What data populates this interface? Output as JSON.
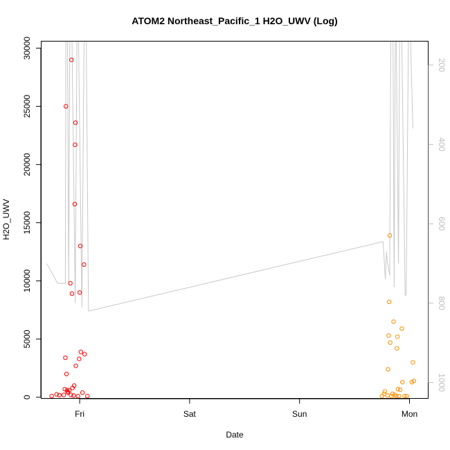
{
  "chart_data": {
    "type": "scatter",
    "title": "ATOM2 Northeast_Pacific_1 H2O_UWV (Log)",
    "xlabel": "Date",
    "ylabel": "H2O_UWV",
    "x_ticks": [
      {
        "label": "Fri",
        "day": 1.0
      },
      {
        "label": "Sat",
        "day": 2.0
      },
      {
        "label": "Sun",
        "day": 3.0
      },
      {
        "label": "Mon",
        "day": 4.0
      }
    ],
    "xlim_days": [
      0.65,
      4.17
    ],
    "ylim": [
      -100,
      30600
    ],
    "y_ticks": [
      0,
      5000,
      10000,
      15000,
      20000,
      25000,
      30000
    ],
    "right_axis": {
      "ticks": [
        200,
        400,
        600,
        800,
        1000
      ],
      "ylim": [
        1040,
        140
      ],
      "color": "#bdbdbd"
    },
    "colors": {
      "series1": "#ff0000",
      "series2": "#ff8c00",
      "profile_line": "#c8c8c8"
    },
    "series": [
      {
        "color": "#ff0000",
        "points": [
          {
            "day": 0.745,
            "value": 100
          },
          {
            "day": 0.79,
            "value": 250
          },
          {
            "day": 0.815,
            "value": 180
          },
          {
            "day": 0.855,
            "value": 200
          },
          {
            "day": 0.865,
            "value": 700
          },
          {
            "day": 0.87,
            "value": 3400
          },
          {
            "day": 0.875,
            "value": 25000
          },
          {
            "day": 0.88,
            "value": 2000
          },
          {
            "day": 0.885,
            "value": 600
          },
          {
            "day": 0.89,
            "value": 450
          },
          {
            "day": 0.895,
            "value": 400
          },
          {
            "day": 0.905,
            "value": 600
          },
          {
            "day": 0.915,
            "value": 9800
          },
          {
            "day": 0.92,
            "value": 200
          },
          {
            "day": 0.925,
            "value": 29000
          },
          {
            "day": 0.93,
            "value": 8900
          },
          {
            "day": 0.935,
            "value": 800
          },
          {
            "day": 0.945,
            "value": 150
          },
          {
            "day": 0.95,
            "value": 1000
          },
          {
            "day": 0.955,
            "value": 16600
          },
          {
            "day": 0.958,
            "value": 21700
          },
          {
            "day": 0.962,
            "value": 23600
          },
          {
            "day": 0.965,
            "value": 2700
          },
          {
            "day": 0.985,
            "value": 100
          },
          {
            "day": 0.995,
            "value": 3300
          },
          {
            "day": 1.0,
            "value": 9000
          },
          {
            "day": 1.005,
            "value": 13000
          },
          {
            "day": 1.01,
            "value": 3900
          },
          {
            "day": 1.025,
            "value": 400
          },
          {
            "day": 1.04,
            "value": 11400
          },
          {
            "day": 1.045,
            "value": 3700
          },
          {
            "day": 1.07,
            "value": 100
          }
        ]
      },
      {
        "color": "#ff8c00",
        "points": [
          {
            "day": 3.75,
            "value": 100
          },
          {
            "day": 3.77,
            "value": 300
          },
          {
            "day": 3.775,
            "value": 500
          },
          {
            "day": 3.8,
            "value": 150
          },
          {
            "day": 3.805,
            "value": 2400
          },
          {
            "day": 3.81,
            "value": 5300
          },
          {
            "day": 3.815,
            "value": 8200
          },
          {
            "day": 3.82,
            "value": 13900
          },
          {
            "day": 3.825,
            "value": 4700
          },
          {
            "day": 3.835,
            "value": 100
          },
          {
            "day": 3.845,
            "value": 300
          },
          {
            "day": 3.855,
            "value": 6500
          },
          {
            "day": 3.865,
            "value": 200
          },
          {
            "day": 3.88,
            "value": 100
          },
          {
            "day": 3.885,
            "value": 4200
          },
          {
            "day": 3.89,
            "value": 5200
          },
          {
            "day": 3.895,
            "value": 700
          },
          {
            "day": 3.905,
            "value": 100
          },
          {
            "day": 3.915,
            "value": 650
          },
          {
            "day": 3.93,
            "value": 5900
          },
          {
            "day": 3.935,
            "value": 1300
          },
          {
            "day": 3.955,
            "value": 100
          },
          {
            "day": 3.975,
            "value": 100
          },
          {
            "day": 4.02,
            "value": 1300
          },
          {
            "day": 4.03,
            "value": 3000
          },
          {
            "day": 4.04,
            "value": 1400
          }
        ]
      }
    ],
    "profile_line": [
      {
        "day": 0.7,
        "pressure": 700
      },
      {
        "day": 0.8,
        "pressure": 750
      },
      {
        "day": 0.87,
        "pressure": 750
      },
      {
        "day": 0.875,
        "pressure": 140
      },
      {
        "day": 0.89,
        "pressure": 140
      },
      {
        "day": 0.9,
        "pressure": 750
      },
      {
        "day": 0.91,
        "pressure": 140
      },
      {
        "day": 0.93,
        "pressure": 140
      },
      {
        "day": 0.96,
        "pressure": 800
      },
      {
        "day": 0.975,
        "pressure": 140
      },
      {
        "day": 0.99,
        "pressure": 140
      },
      {
        "day": 1.02,
        "pressure": 810
      },
      {
        "day": 1.04,
        "pressure": 140
      },
      {
        "day": 1.06,
        "pressure": 140
      },
      {
        "day": 1.08,
        "pressure": 820
      },
      {
        "day": 3.76,
        "pressure": 645
      },
      {
        "day": 3.78,
        "pressure": 740
      },
      {
        "day": 3.79,
        "pressure": 670
      },
      {
        "day": 3.8,
        "pressure": 700
      },
      {
        "day": 3.82,
        "pressure": 730
      },
      {
        "day": 3.83,
        "pressure": 140
      },
      {
        "day": 3.85,
        "pressure": 140
      },
      {
        "day": 3.86,
        "pressure": 760
      },
      {
        "day": 3.87,
        "pressure": 140
      },
      {
        "day": 3.88,
        "pressure": 140
      },
      {
        "day": 3.9,
        "pressure": 700
      },
      {
        "day": 3.91,
        "pressure": 140
      },
      {
        "day": 3.93,
        "pressure": 140
      },
      {
        "day": 3.96,
        "pressure": 780
      },
      {
        "day": 3.97,
        "pressure": 780
      },
      {
        "day": 3.99,
        "pressure": 140
      },
      {
        "day": 4.01,
        "pressure": 140
      },
      {
        "day": 4.03,
        "pressure": 360
      }
    ]
  }
}
